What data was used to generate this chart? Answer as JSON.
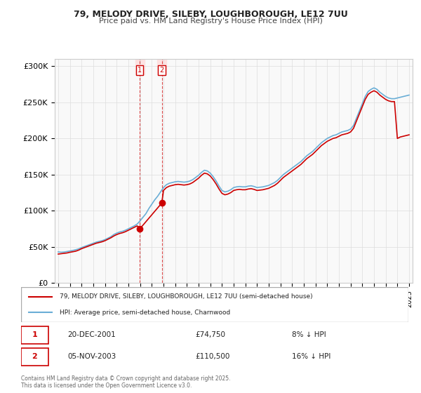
{
  "title": "79, MELODY DRIVE, SILEBY, LOUGHBOROUGH, LE12 7UU",
  "subtitle": "Price paid vs. HM Land Registry's House Price Index (HPI)",
  "xlabel": "",
  "ylabel": "",
  "ylim": [
    0,
    310000
  ],
  "yticks": [
    0,
    50000,
    100000,
    150000,
    200000,
    250000,
    300000
  ],
  "ytick_labels": [
    "£0",
    "£50K",
    "£100K",
    "£150K",
    "£200K",
    "£250K",
    "£300K"
  ],
  "xlim_year": [
    1995,
    2025
  ],
  "background_color": "#ffffff",
  "plot_bg_color": "#f9f9f9",
  "grid_color": "#dddddd",
  "hpi_color": "#6aaed6",
  "price_color": "#cc0000",
  "sale1_date": "20-DEC-2001",
  "sale1_price": 74750,
  "sale1_pct": "8% ↓ HPI",
  "sale2_date": "05-NOV-2003",
  "sale2_price": 110500,
  "sale2_pct": "16% ↓ HPI",
  "sale1_year": 2001.97,
  "sale2_year": 2003.85,
  "legend_label1": "79, MELODY DRIVE, SILEBY, LOUGHBOROUGH, LE12 7UU (semi-detached house)",
  "legend_label2": "HPI: Average price, semi-detached house, Charnwood",
  "footer": "Contains HM Land Registry data © Crown copyright and database right 2025.\nThis data is licensed under the Open Government Licence v3.0.",
  "hpi_data_x": [
    1995.0,
    1995.25,
    1995.5,
    1995.75,
    1996.0,
    1996.25,
    1996.5,
    1996.75,
    1997.0,
    1997.25,
    1997.5,
    1997.75,
    1998.0,
    1998.25,
    1998.5,
    1998.75,
    1999.0,
    1999.25,
    1999.5,
    1999.75,
    2000.0,
    2000.25,
    2000.5,
    2000.75,
    2001.0,
    2001.25,
    2001.5,
    2001.75,
    2002.0,
    2002.25,
    2002.5,
    2002.75,
    2003.0,
    2003.25,
    2003.5,
    2003.75,
    2004.0,
    2004.25,
    2004.5,
    2004.75,
    2005.0,
    2005.25,
    2005.5,
    2005.75,
    2006.0,
    2006.25,
    2006.5,
    2006.75,
    2007.0,
    2007.25,
    2007.5,
    2007.75,
    2008.0,
    2008.25,
    2008.5,
    2008.75,
    2009.0,
    2009.25,
    2009.5,
    2009.75,
    2010.0,
    2010.25,
    2010.5,
    2010.75,
    2011.0,
    2011.25,
    2011.5,
    2011.75,
    2012.0,
    2012.25,
    2012.5,
    2012.75,
    2013.0,
    2013.25,
    2013.5,
    2013.75,
    2014.0,
    2014.25,
    2014.5,
    2014.75,
    2015.0,
    2015.25,
    2015.5,
    2015.75,
    2016.0,
    2016.25,
    2016.5,
    2016.75,
    2017.0,
    2017.25,
    2017.5,
    2017.75,
    2018.0,
    2018.25,
    2018.5,
    2018.75,
    2019.0,
    2019.25,
    2019.5,
    2019.75,
    2020.0,
    2020.25,
    2020.5,
    2020.75,
    2021.0,
    2021.25,
    2021.5,
    2021.75,
    2022.0,
    2022.25,
    2022.5,
    2022.75,
    2023.0,
    2023.25,
    2023.5,
    2023.75,
    2024.0,
    2024.25,
    2024.5,
    2024.75,
    2025.0
  ],
  "hpi_data_y": [
    43000,
    42500,
    42800,
    43500,
    44200,
    45000,
    46000,
    47200,
    49000,
    50500,
    52000,
    53500,
    55000,
    56500,
    57500,
    58500,
    60000,
    62000,
    64000,
    67000,
    69000,
    70500,
    71500,
    73000,
    75000,
    77000,
    79000,
    81500,
    86000,
    91000,
    96000,
    103000,
    109000,
    115000,
    120000,
    126000,
    132000,
    136000,
    138000,
    139000,
    140000,
    140500,
    140000,
    139500,
    140000,
    141000,
    143000,
    146000,
    149000,
    153000,
    156000,
    155000,
    152000,
    147000,
    141000,
    134000,
    128000,
    126000,
    127000,
    129000,
    132000,
    133000,
    133500,
    133000,
    133000,
    134000,
    134500,
    133500,
    132000,
    132500,
    133000,
    134000,
    135000,
    137000,
    139000,
    142000,
    146000,
    150000,
    153000,
    156000,
    159000,
    162000,
    165000,
    168000,
    172000,
    176000,
    179000,
    182000,
    186000,
    190000,
    194000,
    197000,
    200000,
    202000,
    204000,
    205000,
    207000,
    209000,
    210000,
    211000,
    213000,
    218000,
    228000,
    238000,
    248000,
    258000,
    265000,
    268000,
    270000,
    268000,
    264000,
    261000,
    258000,
    256000,
    255000,
    255000,
    256000,
    257000,
    258000,
    259000,
    260000
  ],
  "price_data_x": [
    1995.0,
    1995.25,
    1995.5,
    1995.75,
    1996.0,
    1996.25,
    1996.5,
    1996.75,
    1997.0,
    1997.25,
    1997.5,
    1997.75,
    1998.0,
    1998.25,
    1998.5,
    1998.75,
    1999.0,
    1999.25,
    1999.5,
    1999.75,
    2000.0,
    2000.25,
    2000.5,
    2000.75,
    2001.0,
    2001.25,
    2001.5,
    2001.75,
    2001.97,
    2003.85,
    2004.0,
    2004.25,
    2004.5,
    2004.75,
    2005.0,
    2005.25,
    2005.5,
    2005.75,
    2006.0,
    2006.25,
    2006.5,
    2006.75,
    2007.0,
    2007.25,
    2007.5,
    2007.75,
    2008.0,
    2008.25,
    2008.5,
    2008.75,
    2009.0,
    2009.25,
    2009.5,
    2009.75,
    2010.0,
    2010.25,
    2010.5,
    2010.75,
    2011.0,
    2011.25,
    2011.5,
    2011.75,
    2012.0,
    2012.25,
    2012.5,
    2012.75,
    2013.0,
    2013.25,
    2013.5,
    2013.75,
    2014.0,
    2014.25,
    2014.5,
    2014.75,
    2015.0,
    2015.25,
    2015.5,
    2015.75,
    2016.0,
    2016.25,
    2016.5,
    2016.75,
    2017.0,
    2017.25,
    2017.5,
    2017.75,
    2018.0,
    2018.25,
    2018.5,
    2018.75,
    2019.0,
    2019.25,
    2019.5,
    2019.75,
    2020.0,
    2020.25,
    2020.5,
    2020.75,
    2021.0,
    2021.25,
    2021.5,
    2021.75,
    2022.0,
    2022.25,
    2022.5,
    2022.75,
    2023.0,
    2023.25,
    2023.5,
    2023.75,
    2024.0,
    2024.25,
    2024.5,
    2024.75,
    2025.0
  ],
  "price_data_y": [
    40000,
    40500,
    41000,
    41500,
    42500,
    43200,
    44000,
    45500,
    47500,
    49000,
    50500,
    52000,
    53500,
    55000,
    56000,
    57000,
    58500,
    60500,
    62500,
    65000,
    67000,
    68500,
    69500,
    71000,
    73000,
    75000,
    77000,
    79000,
    74750,
    110500,
    128000,
    132000,
    134000,
    135000,
    136000,
    136500,
    136000,
    135500,
    136000,
    137000,
    139000,
    142000,
    145000,
    149000,
    152000,
    151000,
    148000,
    143000,
    137000,
    130000,
    124000,
    122000,
    123000,
    125000,
    128000,
    129000,
    129500,
    129000,
    129000,
    130000,
    130500,
    129500,
    128000,
    128500,
    129000,
    130000,
    131000,
    133000,
    135000,
    138000,
    142000,
    146000,
    149000,
    152000,
    155000,
    158000,
    161000,
    164000,
    168000,
    172000,
    175000,
    178000,
    182000,
    186000,
    190000,
    193000,
    196000,
    198000,
    200000,
    201000,
    203000,
    205000,
    206000,
    207000,
    209000,
    214000,
    224000,
    234000,
    244000,
    254000,
    261000,
    264000,
    266000,
    264000,
    260000,
    257000,
    254000,
    252000,
    251000,
    251000,
    200000,
    202000,
    203000,
    204000,
    205000
  ]
}
